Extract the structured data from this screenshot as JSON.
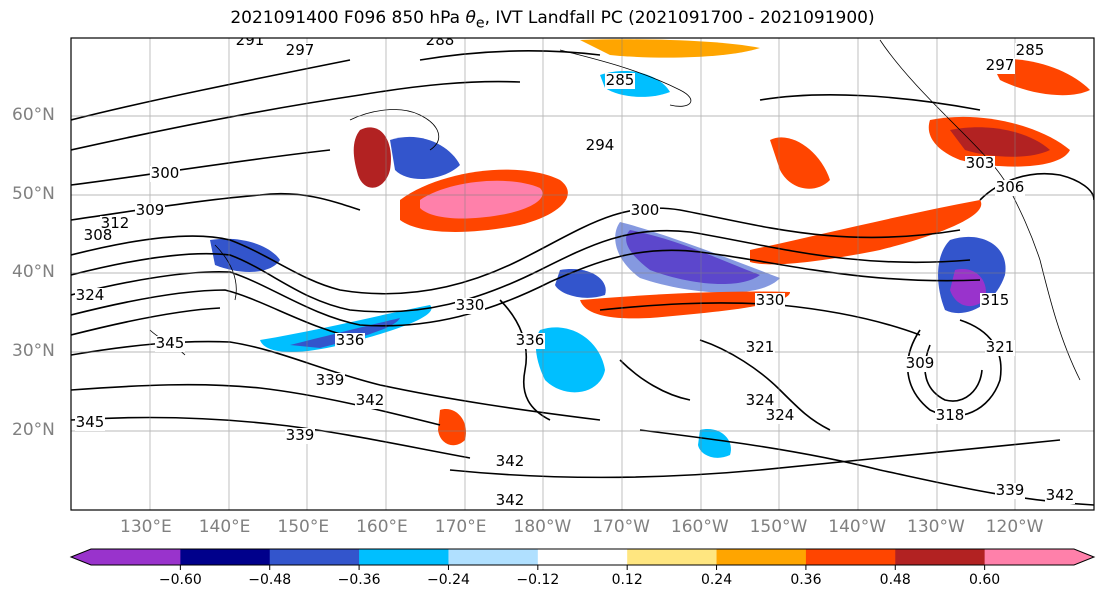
{
  "title": {
    "prefix": "2021091400 F096 850 hPa ",
    "theta": "θ",
    "sub": "e",
    "suffix": ", IVT Landfall PC (2021091700 - 2021091900)"
  },
  "lat_labels": [
    "60°N",
    "50°N",
    "40°N",
    "30°N",
    "20°N"
  ],
  "lon_labels": [
    "130°E",
    "140°E",
    "150°E",
    "160°E",
    "170°E",
    "180°W",
    "170°W",
    "160°W",
    "150°W",
    "140°W",
    "130°W",
    "120°W"
  ],
  "colorbar": {
    "ticks": [
      "−0.60",
      "−0.48",
      "−0.36",
      "−0.24",
      "−0.12",
      "0.12",
      "0.24",
      "0.36",
      "0.48",
      "0.60"
    ],
    "colors": [
      "#9933cc",
      "#00008b",
      "#3355cc",
      "#00bfff",
      "#b0e0ff",
      "#ffffff",
      "#ffe680",
      "#ffa500",
      "#ff4500",
      "#b22222",
      "#ff80aa"
    ]
  },
  "contour_labels": [
    "291",
    "297",
    "288",
    "285",
    "294",
    "285",
    "297",
    "300",
    "306",
    "309",
    "312",
    "308",
    "324",
    "345",
    "336",
    "330",
    "330",
    "336",
    "321",
    "339",
    "342",
    "345",
    "339",
    "342",
    "342",
    "324",
    "324",
    "318",
    "309",
    "321",
    "339",
    "342",
    "300",
    "303",
    "315"
  ],
  "legend_caps": {
    "neg_color": "#9933cc",
    "pos_color": "#ff80aa"
  }
}
